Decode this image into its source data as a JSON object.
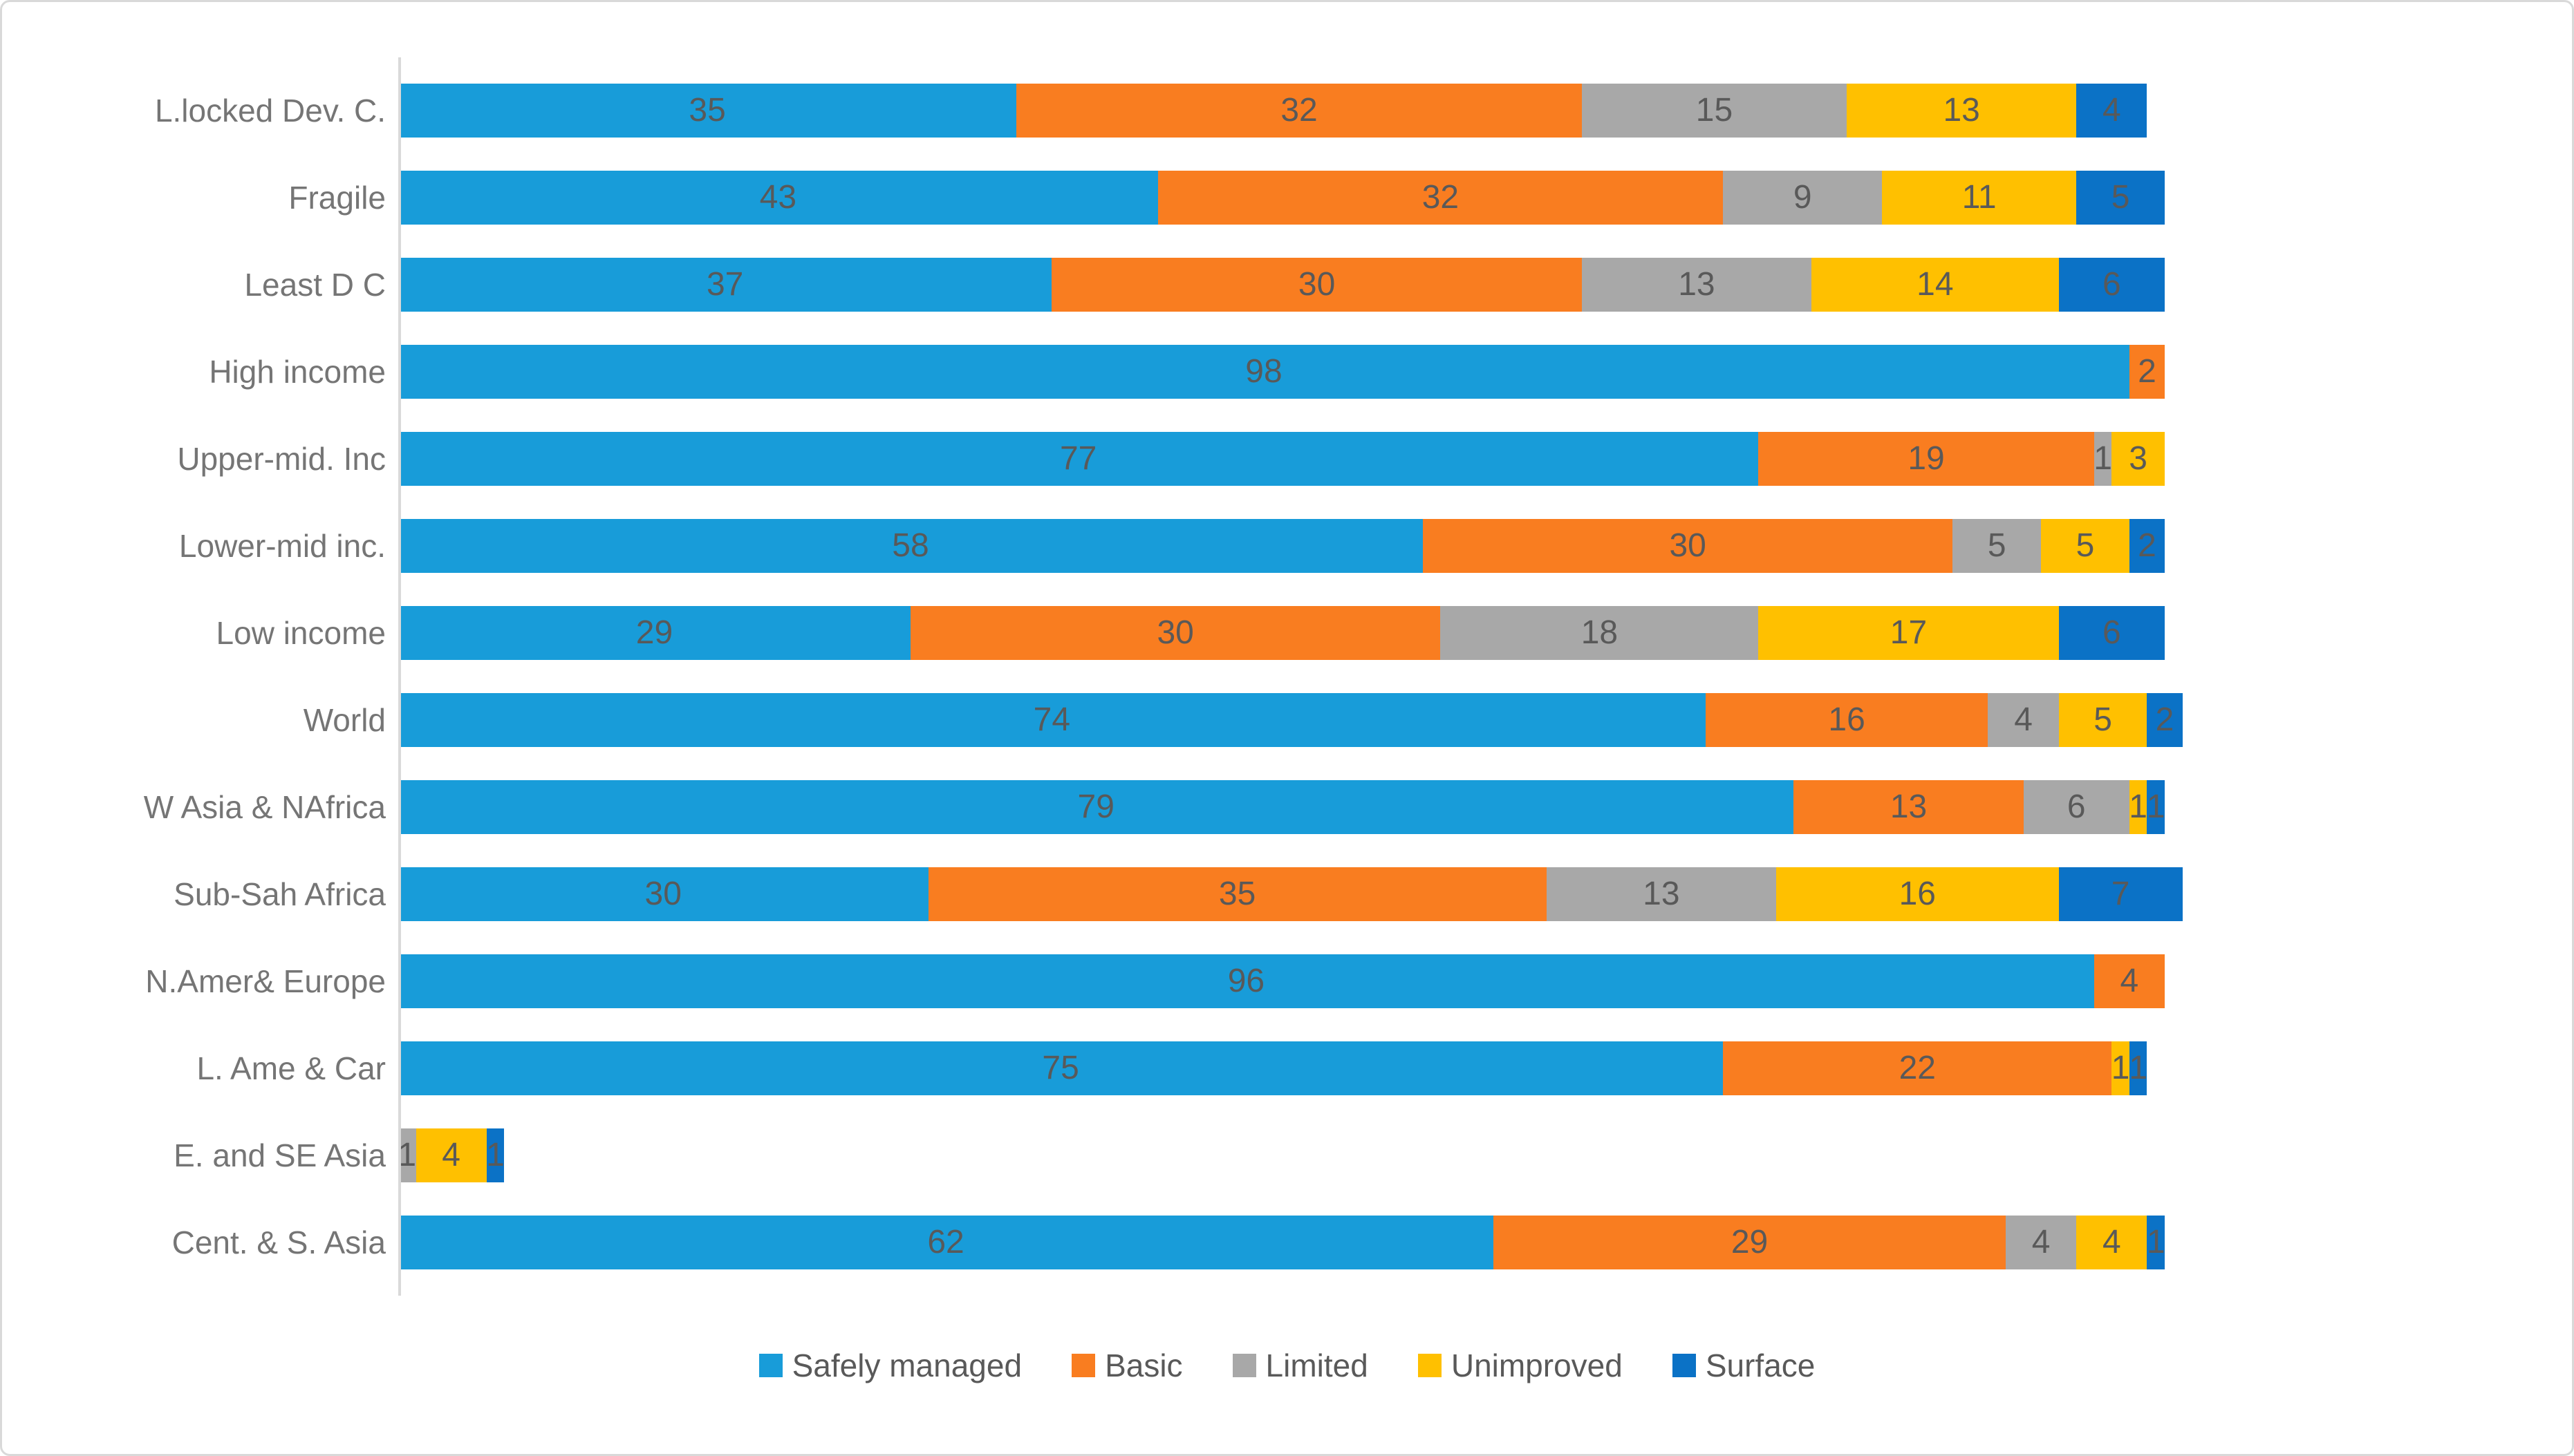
{
  "figure": {
    "background": "#FFFFFF",
    "border_color": "#D9D9D9",
    "axis_line_color": "#D9D9D9"
  },
  "chart_data": {
    "type": "bar",
    "orientation": "horizontal",
    "stacked": true,
    "title": "",
    "xlabel": "",
    "ylabel": "",
    "axis_range": [
      0,
      100
    ],
    "grid": false,
    "legend_position": "bottom",
    "value_labels": "inside-center",
    "value_label_color": "#595959",
    "category_label_color": "#757575",
    "categories": [
      "L.locked Dev. C.",
      "Fragile",
      "Least D C",
      "High income",
      "Upper-mid. Inc",
      "Lower-mid inc.",
      "Low income",
      "World",
      "W Asia & NAfrica",
      "Sub-Sah Africa",
      "N.Amer& Europe",
      "L. Ame & Car",
      "E. and SE Asia",
      "Cent. & S. Asia"
    ],
    "series": [
      {
        "name": "Safely managed",
        "color": "#189CD9",
        "values": [
          35,
          43,
          37,
          98,
          77,
          58,
          29,
          74,
          79,
          30,
          96,
          75,
          0,
          62
        ]
      },
      {
        "name": "Basic",
        "color": "#F97D20",
        "values": [
          32,
          32,
          30,
          2,
          19,
          30,
          30,
          16,
          13,
          35,
          4,
          22,
          0,
          29
        ]
      },
      {
        "name": "Limited",
        "color": "#A8A8A8",
        "values": [
          15,
          9,
          13,
          0,
          1,
          5,
          18,
          4,
          6,
          13,
          0,
          0,
          1,
          4
        ]
      },
      {
        "name": "Unimproved",
        "color": "#FFC000",
        "values": [
          13,
          11,
          14,
          0,
          3,
          5,
          17,
          5,
          1,
          16,
          0,
          1,
          4,
          4
        ]
      },
      {
        "name": "Surface",
        "color": "#0B72C6",
        "values": [
          4,
          5,
          6,
          0,
          0,
          2,
          6,
          2,
          1,
          7,
          0,
          1,
          1,
          1
        ]
      }
    ]
  }
}
